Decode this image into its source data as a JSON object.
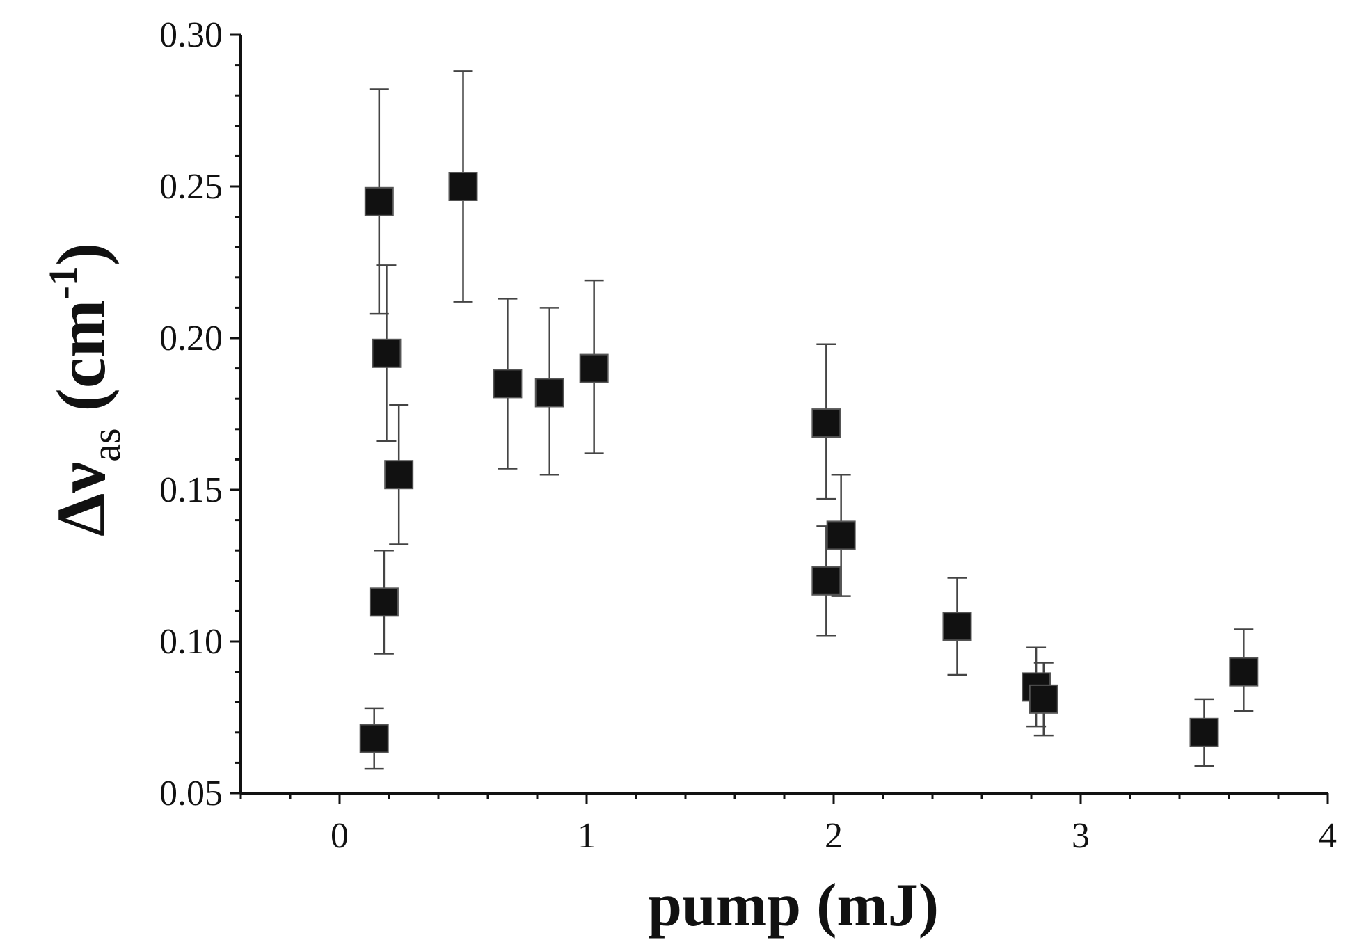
{
  "chart_data": {
    "type": "scatter",
    "title": "",
    "xlabel": "pump (mJ)",
    "ylabel": {
      "symbol": "Δν",
      "subscript": "as",
      "unit_open": "(cm",
      "unit_exponent": "-1",
      "unit_close": ")"
    },
    "xlim": [
      -0.4,
      4
    ],
    "ylim": [
      0.05,
      0.3
    ],
    "x_ticks": [
      {
        "value": 0,
        "label": "0"
      },
      {
        "value": 1,
        "label": "1"
      },
      {
        "value": 2,
        "label": "2"
      },
      {
        "value": 3,
        "label": "3"
      },
      {
        "value": 4,
        "label": "4"
      }
    ],
    "y_ticks": [
      {
        "value": 0.05,
        "label": "0.05"
      },
      {
        "value": 0.1,
        "label": "0.10"
      },
      {
        "value": 0.15,
        "label": "0.15"
      },
      {
        "value": 0.2,
        "label": "0.20"
      },
      {
        "value": 0.25,
        "label": "0.25"
      },
      {
        "value": 0.3,
        "label": "0.30"
      }
    ],
    "grid": false,
    "legend": "none",
    "marker": "filled-square",
    "marker_color": "#111111",
    "error_bar_color": "#444444",
    "points": [
      {
        "x": 0.14,
        "y": 0.068,
        "err_low": 0.058,
        "err_high": 0.078
      },
      {
        "x": 0.16,
        "y": 0.245,
        "err_low": 0.208,
        "err_high": 0.282
      },
      {
        "x": 0.18,
        "y": 0.113,
        "err_low": 0.096,
        "err_high": 0.13
      },
      {
        "x": 0.19,
        "y": 0.195,
        "err_low": 0.166,
        "err_high": 0.224
      },
      {
        "x": 0.24,
        "y": 0.155,
        "err_low": 0.132,
        "err_high": 0.178
      },
      {
        "x": 0.5,
        "y": 0.25,
        "err_low": 0.212,
        "err_high": 0.288
      },
      {
        "x": 0.68,
        "y": 0.185,
        "err_low": 0.157,
        "err_high": 0.213
      },
      {
        "x": 0.85,
        "y": 0.182,
        "err_low": 0.155,
        "err_high": 0.21
      },
      {
        "x": 1.03,
        "y": 0.19,
        "err_low": 0.162,
        "err_high": 0.219
      },
      {
        "x": 1.97,
        "y": 0.172,
        "err_low": 0.147,
        "err_high": 0.198
      },
      {
        "x": 1.97,
        "y": 0.12,
        "err_low": 0.102,
        "err_high": 0.138
      },
      {
        "x": 2.03,
        "y": 0.135,
        "err_low": 0.115,
        "err_high": 0.155
      },
      {
        "x": 2.5,
        "y": 0.105,
        "err_low": 0.089,
        "err_high": 0.121
      },
      {
        "x": 2.82,
        "y": 0.085,
        "err_low": 0.072,
        "err_high": 0.098
      },
      {
        "x": 2.85,
        "y": 0.081,
        "err_low": 0.069,
        "err_high": 0.093
      },
      {
        "x": 3.5,
        "y": 0.07,
        "err_low": 0.059,
        "err_high": 0.081
      },
      {
        "x": 3.66,
        "y": 0.09,
        "err_low": 0.077,
        "err_high": 0.104
      }
    ]
  }
}
